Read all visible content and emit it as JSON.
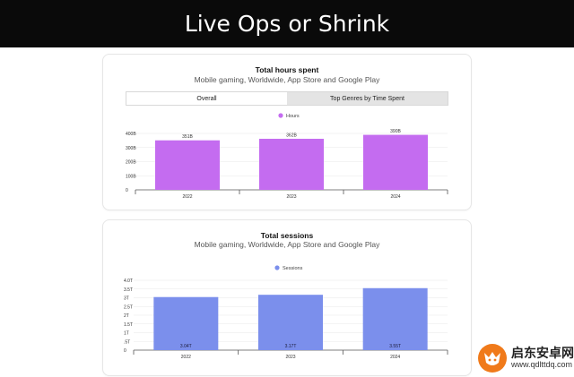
{
  "banner": {
    "title": "Live Ops or Shrink"
  },
  "cards": [
    {
      "title": "Total hours spent",
      "subtitle": "Mobile gaming, Worldwide, App Store and Google Play",
      "tabs": [
        {
          "label": "Overall",
          "active": true
        },
        {
          "label": "Top Genres by Time Spent",
          "active": false
        }
      ]
    },
    {
      "title": "Total sessions",
      "subtitle": "Mobile gaming, Worldwide, App Store and Google Play"
    }
  ],
  "chart_data": [
    {
      "type": "bar",
      "title": "Total hours spent",
      "subtitle": "Mobile gaming, Worldwide, App Store and Google Play",
      "categories": [
        "2022",
        "2023",
        "2024"
      ],
      "series": [
        {
          "name": "Hours",
          "values": [
            351,
            362,
            390
          ],
          "labels": [
            "351B",
            "362B",
            "390B"
          ],
          "color": "#c46cf0"
        }
      ],
      "yticks": [
        "0",
        "100B",
        "200B",
        "300B",
        "400B"
      ],
      "ylim": [
        0,
        400
      ],
      "grid": true,
      "legend": "top-center"
    },
    {
      "type": "bar",
      "title": "Total sessions",
      "subtitle": "Mobile gaming, Worldwide, App Store and Google Play",
      "categories": [
        "2022",
        "2023",
        "2024"
      ],
      "series": [
        {
          "name": "Sessions",
          "values": [
            3.04,
            3.17,
            3.55
          ],
          "labels": [
            "3.04T",
            "3.17T",
            "3.55T"
          ],
          "color": "#7b8fec"
        }
      ],
      "yticks": [
        "0",
        ".5T",
        "1T",
        "1.5T",
        "2T",
        "2.5T",
        "3T",
        "3.5T",
        "4.0T"
      ],
      "ylim": [
        0,
        4
      ],
      "grid": true,
      "legend": "top-center"
    }
  ],
  "watermark": {
    "logo_icon": "fox-logo-icon",
    "text": "启东安卓网",
    "url": "www.qdlttdq.com"
  },
  "colors": {
    "banner_bg": "#0a0a0a",
    "hours": "#c46cf0",
    "sessions": "#7b8fec"
  }
}
